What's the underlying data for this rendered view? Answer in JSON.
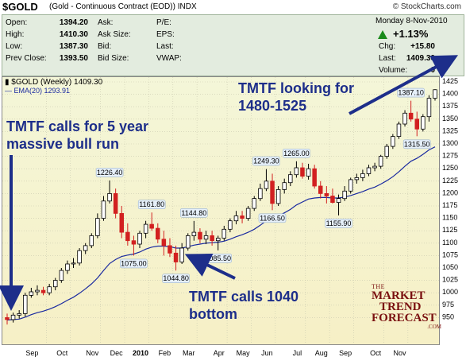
{
  "header": {
    "symbol": "$GOLD",
    "description": "(Gold - Continuous Contract (EOD))  INDX",
    "brand": "© StockCharts.com"
  },
  "quote": {
    "open_label": "Open:",
    "open": "1394.20",
    "high_label": "High:",
    "high": "1410.30",
    "low_label": "Low:",
    "low": "1387.30",
    "prev_label": "Prev Close:",
    "prev": "1393.50",
    "ask_label": "Ask:",
    "asksize_label": "Ask Size:",
    "bid_label": "Bid:",
    "bidsize_label": "Bid Size:",
    "pe_label": "P/E:",
    "eps_label": "EPS:",
    "last_label1": "Last:",
    "vwap_label": "VWAP:",
    "date": "Monday  8-Nov-2010",
    "pct_change": "+1.13%",
    "chg_label": "Chg:",
    "chg": "+15.80",
    "last_label": "Last:",
    "last": "1409.30",
    "volume_label": "Volume:",
    "volume": "0"
  },
  "legend": {
    "series_label": "$GOLD (Weekly) 1409.30",
    "ema_label": "EMA(20) 1293.91"
  },
  "callouts": {
    "c1_line1": "TMTF looking for",
    "c1_line2": "1480-1525",
    "c2_line1": "TMTF calls for 5 year",
    "c2_line2": "massive bull run",
    "c3_line1": "TMTF calls 1040",
    "c3_line2": "bottom"
  },
  "logo": {
    "line1": "THE",
    "line2": "MARKET",
    "line3": "TREND",
    "line4": "FORECAST",
    "line5": ".COM"
  },
  "colors": {
    "up": "#1a8a1a",
    "down": "#d22020",
    "ema": "#1a2aa0",
    "callout": "#1d2e8a"
  },
  "chart_data": {
    "type": "candlestick",
    "title": "$GOLD (Gold - Continuous Contract (EOD)) INDX",
    "period": "Weekly",
    "ylim": [
      925,
      1425
    ],
    "y_ticks": [
      950,
      975,
      1000,
      1025,
      1050,
      1075,
      1100,
      1125,
      1150,
      1175,
      1200,
      1225,
      1250,
      1275,
      1300,
      1325,
      1350,
      1375,
      1400,
      1425
    ],
    "x_labels": [
      "Sep",
      "Oct",
      "Nov",
      "Dec",
      "2010",
      "Feb",
      "Mar",
      "Apr",
      "May",
      "Jun",
      "Jul",
      "Aug",
      "Sep",
      "Oct",
      "Nov"
    ],
    "candles": [
      {
        "o": 950,
        "h": 958,
        "l": 936,
        "c": 946
      },
      {
        "o": 946,
        "h": 960,
        "l": 940,
        "c": 955
      },
      {
        "o": 955,
        "h": 965,
        "l": 948,
        "c": 958
      },
      {
        "o": 958,
        "h": 1000,
        "l": 952,
        "c": 995
      },
      {
        "o": 995,
        "h": 1010,
        "l": 990,
        "c": 1002
      },
      {
        "o": 1002,
        "h": 1015,
        "l": 995,
        "c": 1005
      },
      {
        "o": 1005,
        "h": 1012,
        "l": 995,
        "c": 1000
      },
      {
        "o": 1000,
        "h": 1018,
        "l": 995,
        "c": 1012
      },
      {
        "o": 1012,
        "h": 1030,
        "l": 1005,
        "c": 1025
      },
      {
        "o": 1025,
        "h": 1050,
        "l": 1020,
        "c": 1045
      },
      {
        "o": 1045,
        "h": 1065,
        "l": 1038,
        "c": 1058
      },
      {
        "o": 1058,
        "h": 1070,
        "l": 1050,
        "c": 1060
      },
      {
        "o": 1060,
        "h": 1090,
        "l": 1055,
        "c": 1085
      },
      {
        "o": 1085,
        "h": 1100,
        "l": 1078,
        "c": 1095
      },
      {
        "o": 1095,
        "h": 1120,
        "l": 1090,
        "c": 1115
      },
      {
        "o": 1115,
        "h": 1160,
        "l": 1110,
        "c": 1150
      },
      {
        "o": 1150,
        "h": 1195,
        "l": 1145,
        "c": 1185
      },
      {
        "o": 1185,
        "h": 1226.4,
        "l": 1180,
        "c": 1200
      },
      {
        "o": 1200,
        "h": 1210,
        "l": 1150,
        "c": 1160
      },
      {
        "o": 1160,
        "h": 1175,
        "l": 1110,
        "c": 1122
      },
      {
        "o": 1122,
        "h": 1140,
        "l": 1095,
        "c": 1105
      },
      {
        "o": 1105,
        "h": 1115,
        "l": 1075,
        "c": 1098
      },
      {
        "o": 1098,
        "h": 1125,
        "l": 1090,
        "c": 1120
      },
      {
        "o": 1120,
        "h": 1145,
        "l": 1110,
        "c": 1138
      },
      {
        "o": 1138,
        "h": 1161.8,
        "l": 1125,
        "c": 1130
      },
      {
        "o": 1130,
        "h": 1140,
        "l": 1100,
        "c": 1108
      },
      {
        "o": 1108,
        "h": 1125,
        "l": 1075,
        "c": 1095
      },
      {
        "o": 1095,
        "h": 1110,
        "l": 1072,
        "c": 1080
      },
      {
        "o": 1080,
        "h": 1095,
        "l": 1044.8,
        "c": 1062
      },
      {
        "o": 1062,
        "h": 1100,
        "l": 1058,
        "c": 1090
      },
      {
        "o": 1090,
        "h": 1120,
        "l": 1085,
        "c": 1115
      },
      {
        "o": 1115,
        "h": 1144.8,
        "l": 1105,
        "c": 1122
      },
      {
        "o": 1122,
        "h": 1130,
        "l": 1100,
        "c": 1108
      },
      {
        "o": 1108,
        "h": 1125,
        "l": 1098,
        "c": 1115
      },
      {
        "o": 1115,
        "h": 1125,
        "l": 1095,
        "c": 1105
      },
      {
        "o": 1105,
        "h": 1115,
        "l": 1085.5,
        "c": 1110
      },
      {
        "o": 1110,
        "h": 1135,
        "l": 1105,
        "c": 1128
      },
      {
        "o": 1128,
        "h": 1150,
        "l": 1122,
        "c": 1145
      },
      {
        "o": 1145,
        "h": 1165,
        "l": 1138,
        "c": 1155
      },
      {
        "o": 1155,
        "h": 1165,
        "l": 1140,
        "c": 1150
      },
      {
        "o": 1150,
        "h": 1175,
        "l": 1145,
        "c": 1170
      },
      {
        "o": 1170,
        "h": 1195,
        "l": 1165,
        "c": 1190
      },
      {
        "o": 1190,
        "h": 1220,
        "l": 1185,
        "c": 1210
      },
      {
        "o": 1210,
        "h": 1249.3,
        "l": 1205,
        "c": 1225
      },
      {
        "o": 1225,
        "h": 1240,
        "l": 1166.5,
        "c": 1180
      },
      {
        "o": 1180,
        "h": 1215,
        "l": 1175,
        "c": 1208
      },
      {
        "o": 1208,
        "h": 1230,
        "l": 1200,
        "c": 1222
      },
      {
        "o": 1222,
        "h": 1245,
        "l": 1215,
        "c": 1238
      },
      {
        "o": 1238,
        "h": 1265,
        "l": 1232,
        "c": 1252
      },
      {
        "o": 1252,
        "h": 1262,
        "l": 1230,
        "c": 1235
      },
      {
        "o": 1235,
        "h": 1260,
        "l": 1228,
        "c": 1250
      },
      {
        "o": 1250,
        "h": 1258,
        "l": 1210,
        "c": 1215
      },
      {
        "o": 1215,
        "h": 1225,
        "l": 1190,
        "c": 1200
      },
      {
        "o": 1200,
        "h": 1215,
        "l": 1180,
        "c": 1195
      },
      {
        "o": 1195,
        "h": 1210,
        "l": 1180,
        "c": 1182
      },
      {
        "o": 1182,
        "h": 1198,
        "l": 1155.9,
        "c": 1190
      },
      {
        "o": 1190,
        "h": 1215,
        "l": 1185,
        "c": 1205
      },
      {
        "o": 1205,
        "h": 1232,
        "l": 1200,
        "c": 1228
      },
      {
        "o": 1228,
        "h": 1240,
        "l": 1220,
        "c": 1232
      },
      {
        "o": 1232,
        "h": 1248,
        "l": 1225,
        "c": 1240
      },
      {
        "o": 1240,
        "h": 1258,
        "l": 1235,
        "c": 1252
      },
      {
        "o": 1252,
        "h": 1262,
        "l": 1245,
        "c": 1255
      },
      {
        "o": 1255,
        "h": 1278,
        "l": 1250,
        "c": 1275
      },
      {
        "o": 1275,
        "h": 1300,
        "l": 1270,
        "c": 1295
      },
      {
        "o": 1295,
        "h": 1320,
        "l": 1290,
        "c": 1315
      },
      {
        "o": 1315,
        "h": 1345,
        "l": 1310,
        "c": 1340
      },
      {
        "o": 1340,
        "h": 1368,
        "l": 1335,
        "c": 1362
      },
      {
        "o": 1362,
        "h": 1387.1,
        "l": 1345,
        "c": 1350
      },
      {
        "o": 1350,
        "h": 1365,
        "l": 1315.5,
        "c": 1330
      },
      {
        "o": 1330,
        "h": 1360,
        "l": 1325,
        "c": 1355
      },
      {
        "o": 1355,
        "h": 1398,
        "l": 1345,
        "c": 1392
      },
      {
        "o": 1392,
        "h": 1410.3,
        "l": 1387.3,
        "c": 1409.3
      }
    ],
    "ema": [
      945,
      946,
      947,
      951,
      956,
      960,
      963,
      967,
      972,
      978,
      985,
      991,
      999,
      1008,
      1018,
      1030,
      1045,
      1059,
      1067,
      1073,
      1076,
      1078,
      1082,
      1088,
      1092,
      1094,
      1094,
      1093,
      1090,
      1090,
      1093,
      1096,
      1098,
      1100,
      1101,
      1102,
      1104,
      1108,
      1113,
      1117,
      1122,
      1128,
      1136,
      1145,
      1149,
      1155,
      1161,
      1168,
      1177,
      1183,
      1189,
      1191,
      1192,
      1192,
      1191,
      1191,
      1193,
      1196,
      1200,
      1204,
      1209,
      1213,
      1219,
      1226,
      1234,
      1244,
      1255,
      1265,
      1271,
      1279,
      1288,
      1294
    ],
    "annotations": [
      {
        "i": 17,
        "v": 1226.4,
        "label": "1226.40",
        "pos": "above"
      },
      {
        "i": 24,
        "v": 1161.8,
        "label": "1161.80",
        "pos": "above"
      },
      {
        "i": 21,
        "v": 1075.0,
        "label": "1075.00",
        "pos": "below"
      },
      {
        "i": 28,
        "v": 1044.8,
        "label": "1044.80",
        "pos": "below"
      },
      {
        "i": 31,
        "v": 1144.8,
        "label": "1144.80",
        "pos": "above"
      },
      {
        "i": 35,
        "v": 1085.5,
        "label": "1085.50",
        "pos": "below"
      },
      {
        "i": 43,
        "v": 1249.3,
        "label": "1249.30",
        "pos": "above"
      },
      {
        "i": 44,
        "v": 1166.5,
        "label": "1166.50",
        "pos": "below"
      },
      {
        "i": 48,
        "v": 1265.0,
        "label": "1265.00",
        "pos": "above"
      },
      {
        "i": 55,
        "v": 1155.9,
        "label": "1155.90",
        "pos": "below"
      },
      {
        "i": 67,
        "v": 1387.1,
        "label": "1387.10",
        "pos": "above"
      },
      {
        "i": 68,
        "v": 1315.5,
        "label": "1315.50",
        "pos": "below"
      }
    ]
  }
}
